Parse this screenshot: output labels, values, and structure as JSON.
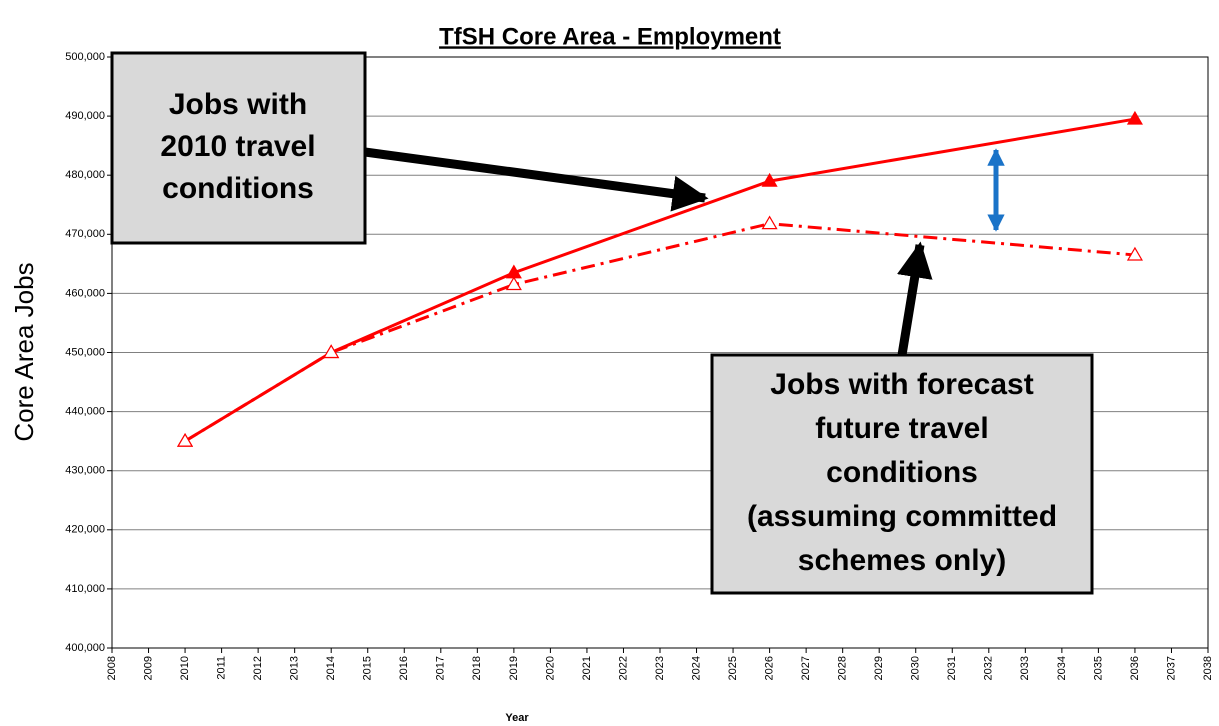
{
  "chart_data": {
    "type": "line",
    "title": "TfSH Core Area - Employment",
    "x_label": "Year",
    "y_label": "Core Area Jobs",
    "xlim": [
      2008,
      2038
    ],
    "xticks": [
      2008,
      2009,
      2010,
      2011,
      2012,
      2013,
      2014,
      2015,
      2016,
      2017,
      2018,
      2019,
      2020,
      2021,
      2022,
      2023,
      2024,
      2025,
      2026,
      2027,
      2028,
      2029,
      2030,
      2031,
      2032,
      2033,
      2034,
      2035,
      2036,
      2037,
      2038
    ],
    "ylim": [
      400000,
      500000
    ],
    "yticks": [
      {
        "value": 400000,
        "label": "400,000"
      },
      {
        "value": 410000,
        "label": "410,000"
      },
      {
        "value": 420000,
        "label": "420,000"
      },
      {
        "value": 430000,
        "label": "430,000"
      },
      {
        "value": 440000,
        "label": "440,000"
      },
      {
        "value": 450000,
        "label": "450,000"
      },
      {
        "value": 460000,
        "label": "460,000"
      },
      {
        "value": 470000,
        "label": "470,000"
      },
      {
        "value": 480000,
        "label": "480,000"
      },
      {
        "value": 490000,
        "label": "490,000"
      },
      {
        "value": 500000,
        "label": "500,000"
      }
    ],
    "grid": true,
    "series": [
      {
        "color": "#ff0000",
        "line_style": "solid",
        "markers": "filled",
        "x": [
          2010,
          2014,
          2019,
          2026,
          2036
        ],
        "values": [
          435000,
          450000,
          463500,
          479000,
          489500
        ]
      },
      {
        "color": "#ff0000",
        "line_style": "dashdot",
        "markers": "open",
        "x": [
          2010,
          2014,
          2019,
          2026,
          2036
        ],
        "values": [
          435000,
          450000,
          461500,
          471800,
          466500
        ]
      }
    ],
    "annotations": [
      {
        "lines": [
          "Jobs with",
          "2010 travel",
          "conditions"
        ]
      },
      {
        "lines": [
          "Jobs with forecast",
          "future travel",
          "conditions",
          "(assuming committed",
          "schemes only)"
        ]
      }
    ]
  }
}
